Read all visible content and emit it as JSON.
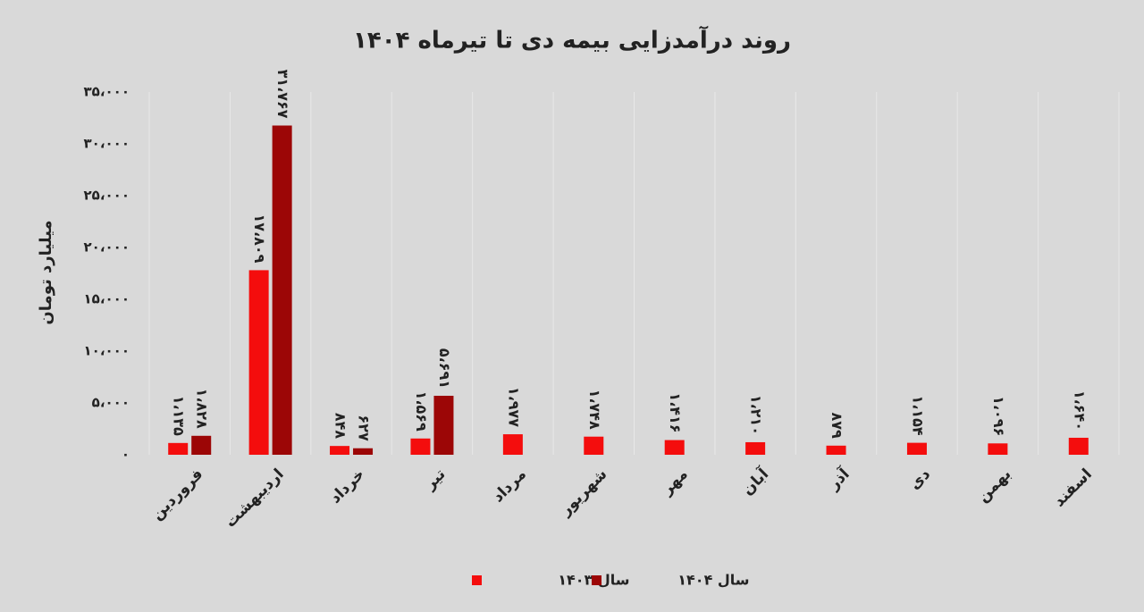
{
  "chart_data": {
    "type": "bar",
    "title": "روند درآمدزایی بیمه دی تا تیرماه ۱۴۰۴",
    "y_label": "میلیارد تومان",
    "categories": [
      "فروردین",
      "اردیبهشت",
      "خرداد",
      "تیر",
      "مرداد",
      "شهریور",
      "مهر",
      "آبان",
      "آذر",
      "دی",
      "بهمن",
      "اسفند"
    ],
    "series": [
      {
        "name": "سال ۱۴۰۳",
        "color": "#f40d0d",
        "values": [
          1135,
          17809,
          848,
          1569,
          1977,
          1748,
          1416,
          1210,
          879,
          1154,
          1096,
          1640
        ],
        "value_labels": [
          "۱،۱۳۵",
          "۱۷،۸۰۹",
          "۸۴۸",
          "۱،۵۶۹",
          "۱،۹۷۷",
          "۱،۷۴۸",
          "۱،۴۱۶",
          "۱،۲۱۰",
          "۸۷۹",
          "۱،۱۵۴",
          "۱،۰۹۶",
          "۱،۶۴۰"
        ]
      },
      {
        "name": "سال ۱۴۰۴",
        "color": "#9c0606",
        "values": [
          1828,
          31767,
          627,
          5691,
          null,
          null,
          null,
          null,
          null,
          null,
          null,
          null
        ],
        "value_labels": [
          "۱،۸۲۸",
          "۳۱،۷۶۷",
          "۶۲۷",
          "۵،۶۹۱",
          null,
          null,
          null,
          null,
          null,
          null,
          null,
          null
        ]
      }
    ],
    "ylim": [
      0,
      35000
    ],
    "yticks": [
      {
        "value": 0,
        "label": "۰"
      },
      {
        "value": 5000,
        "label": "۵،۰۰۰"
      },
      {
        "value": 10000,
        "label": "۱۰،۰۰۰"
      },
      {
        "value": 15000,
        "label": "۱۵،۰۰۰"
      },
      {
        "value": 20000,
        "label": "۲۰،۰۰۰"
      },
      {
        "value": 25000,
        "label": "۲۵،۰۰۰"
      },
      {
        "value": 30000,
        "label": "۳۰،۰۰۰"
      },
      {
        "value": 35000,
        "label": "۳۵،۰۰۰"
      }
    ],
    "grid": true
  }
}
